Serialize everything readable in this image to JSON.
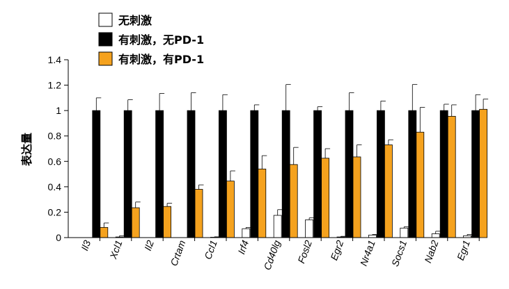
{
  "chart_data": {
    "type": "bar",
    "ylabel": "表达量",
    "xlabel": "",
    "title": "",
    "ylim": [
      0,
      1.4
    ],
    "yticks": [
      "0",
      "0.2",
      "0.4",
      "0.6",
      "0.8",
      "1",
      "1.2",
      "1.4"
    ],
    "grid": false,
    "legend_position": "top-left",
    "categories": [
      "Il3",
      "Xcl1",
      "Il2",
      "Crtam",
      "Ccl1",
      "Irf4",
      "Cd40lg",
      "Fosl2",
      "Egr2",
      "Nr4a1",
      "Socs1",
      "Nab2",
      "Egr1"
    ],
    "series": [
      {
        "name": "无刺激",
        "color": "#ffffff",
        "values": [
          0.0,
          0.005,
          0.0,
          0.0,
          0.003,
          0.07,
          0.175,
          0.14,
          0.005,
          0.02,
          0.075,
          0.03,
          0.015
        ],
        "errors": [
          0.0,
          0.01,
          0.0,
          0.0,
          0.003,
          0.01,
          0.045,
          0.015,
          0.005,
          0.005,
          0.01,
          0.02,
          0.01
        ]
      },
      {
        "name": "有刺激，无PD-1",
        "color": "#000000",
        "values": [
          1,
          1,
          1,
          1,
          1,
          1,
          1,
          1,
          1,
          1,
          1,
          1,
          1
        ],
        "errors": [
          0.1,
          0.085,
          0.135,
          0.14,
          0.125,
          0.045,
          0.205,
          0.03,
          0.14,
          0.075,
          0.205,
          0.05,
          0.125
        ]
      },
      {
        "name": "有刺激，有PD-1",
        "color": "#f5a21e",
        "values": [
          0.08,
          0.235,
          0.245,
          0.38,
          0.445,
          0.54,
          0.575,
          0.625,
          0.635,
          0.73,
          0.83,
          0.955,
          1.01
        ],
        "errors": [
          0.035,
          0.045,
          0.025,
          0.035,
          0.08,
          0.105,
          0.135,
          0.075,
          0.095,
          0.04,
          0.195,
          0.09,
          0.08
        ]
      }
    ]
  }
}
